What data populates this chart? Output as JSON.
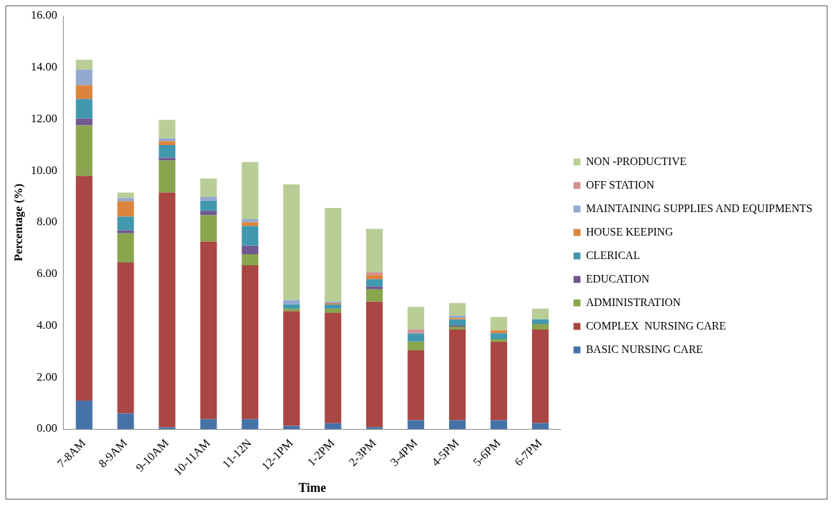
{
  "chart_data": {
    "type": "bar",
    "stacked": true,
    "xlabel": "Time",
    "ylabel": "Percentage (%)",
    "categories": [
      "7-8AM",
      "8-9AM",
      "9-10AM",
      "10-11AM",
      "11-12N",
      "12-1PM",
      "1-2PM",
      "2-3PM",
      "3-4PM",
      "4-5PM",
      "5-6PM",
      "6-7PM"
    ],
    "ylim": [
      0,
      16
    ],
    "yticks": [
      {
        "value": 0,
        "label": "0.00"
      },
      {
        "value": 2,
        "label": "2.00"
      },
      {
        "value": 4,
        "label": "4.00"
      },
      {
        "value": 6,
        "label": "6.00"
      },
      {
        "value": 8,
        "label": "8.00"
      },
      {
        "value": 10,
        "label": "10.00"
      },
      {
        "value": 12,
        "label": "12.00"
      },
      {
        "value": 14,
        "label": "14.00"
      },
      {
        "value": 16,
        "label": "16.00"
      }
    ],
    "grid": false,
    "legend": "right",
    "series": [
      {
        "name": "BASIC NURSING CARE",
        "color": "#4572a7",
        "values": [
          1.1,
          0.6,
          0.07,
          0.38,
          0.38,
          0.12,
          0.22,
          0.07,
          0.34,
          0.34,
          0.34,
          0.23
        ]
      },
      {
        "name": "COMPLEX  NURSING CARE",
        "color": "#aa4643",
        "values": [
          8.7,
          5.85,
          9.09,
          6.88,
          5.96,
          4.44,
          4.28,
          4.86,
          2.71,
          3.51,
          3.03,
          3.62
        ]
      },
      {
        "name": "ADMINISTRATION",
        "color": "#89a54e",
        "values": [
          1.96,
          1.13,
          1.24,
          1.02,
          0.43,
          0.1,
          0.16,
          0.48,
          0.33,
          0.11,
          0.11,
          0.22
        ]
      },
      {
        "name": "EDUCATION",
        "color": "#71588f",
        "values": [
          0.26,
          0.11,
          0.1,
          0.17,
          0.33,
          0,
          0,
          0.11,
          0,
          0.05,
          0,
          0
        ]
      },
      {
        "name": "CLERICAL",
        "color": "#4198af",
        "values": [
          0.76,
          0.54,
          0.5,
          0.38,
          0.76,
          0.17,
          0.16,
          0.28,
          0.32,
          0.23,
          0.23,
          0.18
        ]
      },
      {
        "name": "HOUSE KEEPING",
        "color": "#db843d",
        "values": [
          0.54,
          0.59,
          0.15,
          0,
          0.15,
          0,
          0.05,
          0.16,
          0,
          0.06,
          0.11,
          0
        ]
      },
      {
        "name": "MAINTAINING SUPPLIES AND EQUIPMENTS",
        "color": "#93a9cf",
        "values": [
          0.6,
          0.12,
          0.11,
          0.16,
          0.12,
          0.16,
          0.06,
          0,
          0,
          0.09,
          0,
          0
        ]
      },
      {
        "name": "OFF STATION",
        "color": "#d19392",
        "values": [
          0,
          0,
          0,
          0,
          0,
          0,
          0,
          0.11,
          0.16,
          0,
          0,
          0
        ]
      },
      {
        "name": "NON -PRODUCTIVE",
        "color": "#b9cd96",
        "values": [
          0.38,
          0.22,
          0.71,
          0.71,
          2.21,
          4.49,
          3.63,
          1.68,
          0.87,
          0.49,
          0.52,
          0.41
        ]
      }
    ]
  }
}
